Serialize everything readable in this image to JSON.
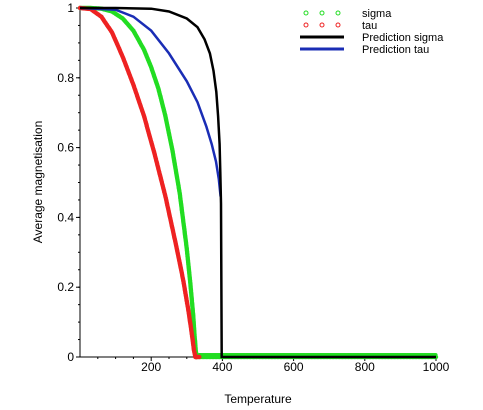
{
  "chart_data": {
    "type": "line",
    "xlabel": "Temperature",
    "ylabel": "Average magnetisation",
    "xlim": [
      0,
      1000
    ],
    "ylim": [
      0,
      1
    ],
    "x_ticks": [
      200,
      400,
      600,
      800,
      1000
    ],
    "x_tick_labels": [
      "200",
      "400",
      "600",
      "800",
      "1000"
    ],
    "y_ticks": [
      0,
      0.2,
      0.4,
      0.6,
      0.8,
      1
    ],
    "y_tick_labels": [
      "0",
      "0.2",
      "0.4",
      "0.6",
      "0.8",
      "1"
    ],
    "grid": false,
    "legend_position": "top-right",
    "series": [
      {
        "name": "sigma",
        "style": "points",
        "color": "#22dd22",
        "x": [
          0,
          30,
          60,
          90,
          120,
          150,
          180,
          200,
          220,
          240,
          260,
          280,
          300,
          310,
          318,
          322,
          325,
          328,
          335,
          400,
          500,
          600,
          700,
          800,
          900,
          1000
        ],
        "y": [
          1.0,
          1.0,
          0.998,
          0.99,
          0.97,
          0.935,
          0.88,
          0.83,
          0.77,
          0.69,
          0.59,
          0.47,
          0.31,
          0.21,
          0.12,
          0.06,
          0.02,
          0.0,
          0.0,
          0.0,
          0.0,
          0.0,
          0.0,
          0.0,
          0.0,
          0.0
        ]
      },
      {
        "name": "tau",
        "style": "points",
        "color": "#ee2222",
        "x": [
          0,
          30,
          60,
          90,
          120,
          150,
          180,
          210,
          240,
          270,
          290,
          305,
          315,
          320,
          324,
          326,
          328,
          335
        ],
        "y": [
          1.0,
          0.997,
          0.975,
          0.93,
          0.86,
          0.78,
          0.69,
          0.58,
          0.46,
          0.32,
          0.22,
          0.13,
          0.06,
          0.02,
          0.0,
          0.0,
          0.0,
          0.0
        ]
      },
      {
        "name": "Prediction sigma",
        "style": "line",
        "color": "#000000",
        "x": [
          0,
          100,
          200,
          250,
          300,
          330,
          350,
          365,
          375,
          383,
          388,
          392,
          394,
          396,
          398,
          400,
          1000
        ],
        "y": [
          1.0,
          1.0,
          0.998,
          0.99,
          0.97,
          0.945,
          0.91,
          0.87,
          0.82,
          0.76,
          0.69,
          0.61,
          0.53,
          0.44,
          0.0,
          0.0,
          0.0
        ]
      },
      {
        "name": "Prediction tau",
        "style": "line",
        "color": "#1a2db5",
        "x": [
          0,
          100,
          150,
          200,
          250,
          300,
          330,
          355,
          370,
          382,
          390,
          395
        ],
        "y": [
          1.0,
          0.995,
          0.975,
          0.935,
          0.87,
          0.79,
          0.73,
          0.66,
          0.61,
          0.56,
          0.51,
          0.46
        ]
      }
    ]
  }
}
